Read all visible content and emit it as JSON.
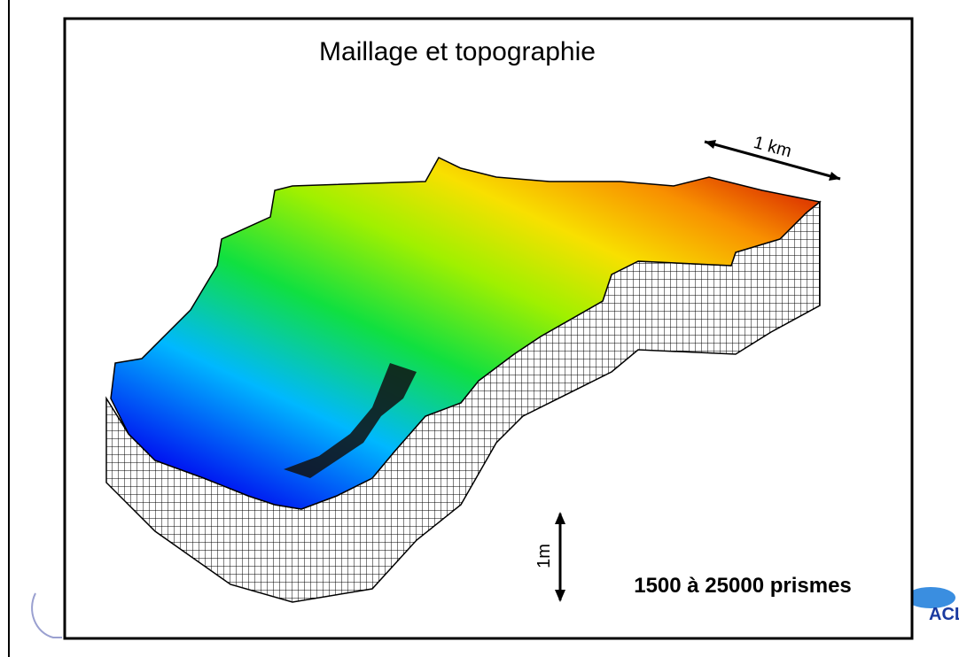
{
  "title": "Maillage et topographie",
  "scale_horizontal": "1 km",
  "scale_vertical": "1m",
  "caption": "1500 à 25000 prismes",
  "logo_text": "ACLE"
}
